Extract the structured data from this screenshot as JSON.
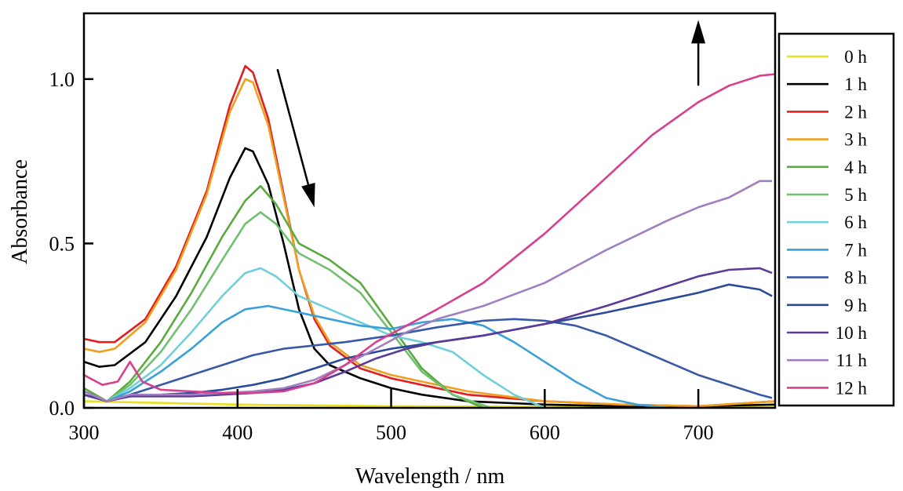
{
  "chart_data": {
    "type": "line",
    "title": "",
    "xlabel": "Wavelength / nm",
    "ylabel": "Absorbance",
    "xlim": [
      300,
      750
    ],
    "ylim": [
      0,
      1.2
    ],
    "x_ticks": [
      300,
      400,
      500,
      600,
      700
    ],
    "x_tick_labels": [
      "300",
      "400",
      "500",
      "600",
      "700"
    ],
    "y_ticks": [
      0,
      0.5,
      1.0
    ],
    "y_tick_labels": [
      "0.0",
      "0.5",
      "1.0"
    ],
    "grid": false,
    "legend_position": "right",
    "annotations": [
      {
        "type": "arrow",
        "direction": "down",
        "from": [
          426,
          1.03
        ],
        "to": [
          450,
          0.61
        ]
      },
      {
        "type": "arrow",
        "direction": "up",
        "from": [
          700,
          0.98
        ],
        "to": [
          700,
          1.18
        ]
      }
    ],
    "series": [
      {
        "name": "0 h",
        "color": "#e8e020",
        "points": [
          [
            300,
            0.02
          ],
          [
            350,
            0.015
          ],
          [
            400,
            0.01
          ],
          [
            500,
            0.005
          ],
          [
            600,
            0.003
          ],
          [
            700,
            0.003
          ],
          [
            750,
            0.002
          ]
        ]
      },
      {
        "name": "1 h",
        "color": "#000000",
        "points": [
          [
            300,
            0.14
          ],
          [
            310,
            0.125
          ],
          [
            320,
            0.13
          ],
          [
            340,
            0.2
          ],
          [
            360,
            0.34
          ],
          [
            380,
            0.52
          ],
          [
            395,
            0.7
          ],
          [
            405,
            0.79
          ],
          [
            410,
            0.78
          ],
          [
            420,
            0.68
          ],
          [
            430,
            0.5
          ],
          [
            440,
            0.3
          ],
          [
            450,
            0.18
          ],
          [
            460,
            0.13
          ],
          [
            480,
            0.09
          ],
          [
            500,
            0.06
          ],
          [
            520,
            0.04
          ],
          [
            550,
            0.02
          ],
          [
            600,
            0.01
          ],
          [
            650,
            0.005
          ],
          [
            700,
            0.005
          ],
          [
            750,
            0.01
          ]
        ]
      },
      {
        "name": "2 h",
        "color": "#e02020",
        "points": [
          [
            300,
            0.21
          ],
          [
            310,
            0.2
          ],
          [
            320,
            0.2
          ],
          [
            340,
            0.27
          ],
          [
            360,
            0.43
          ],
          [
            380,
            0.66
          ],
          [
            395,
            0.92
          ],
          [
            405,
            1.04
          ],
          [
            410,
            1.02
          ],
          [
            420,
            0.88
          ],
          [
            430,
            0.65
          ],
          [
            440,
            0.42
          ],
          [
            450,
            0.27
          ],
          [
            460,
            0.19
          ],
          [
            480,
            0.12
          ],
          [
            500,
            0.09
          ],
          [
            520,
            0.07
          ],
          [
            550,
            0.04
          ],
          [
            600,
            0.02
          ],
          [
            650,
            0.01
          ],
          [
            700,
            0.005
          ],
          [
            750,
            0.02
          ]
        ]
      },
      {
        "name": "3 h",
        "color": "#f0a020",
        "points": [
          [
            300,
            0.18
          ],
          [
            310,
            0.17
          ],
          [
            320,
            0.18
          ],
          [
            340,
            0.26
          ],
          [
            360,
            0.42
          ],
          [
            380,
            0.65
          ],
          [
            395,
            0.9
          ],
          [
            405,
            1.0
          ],
          [
            410,
            0.99
          ],
          [
            420,
            0.86
          ],
          [
            430,
            0.64
          ],
          [
            440,
            0.42
          ],
          [
            450,
            0.28
          ],
          [
            460,
            0.2
          ],
          [
            480,
            0.13
          ],
          [
            500,
            0.1
          ],
          [
            520,
            0.08
          ],
          [
            550,
            0.05
          ],
          [
            600,
            0.02
          ],
          [
            650,
            0.01
          ],
          [
            700,
            0.005
          ],
          [
            750,
            0.02
          ]
        ]
      },
      {
        "name": "4 h",
        "color": "#5aaa40",
        "points": [
          [
            300,
            0.06
          ],
          [
            315,
            0.02
          ],
          [
            330,
            0.08
          ],
          [
            350,
            0.2
          ],
          [
            370,
            0.35
          ],
          [
            390,
            0.52
          ],
          [
            405,
            0.63
          ],
          [
            415,
            0.675
          ],
          [
            425,
            0.62
          ],
          [
            440,
            0.5
          ],
          [
            460,
            0.45
          ],
          [
            480,
            0.38
          ],
          [
            500,
            0.25
          ],
          [
            520,
            0.12
          ],
          [
            540,
            0.04
          ],
          [
            560,
            0.0
          ]
        ]
      },
      {
        "name": "5 h",
        "color": "#70c070",
        "points": [
          [
            300,
            0.05
          ],
          [
            315,
            0.02
          ],
          [
            330,
            0.07
          ],
          [
            350,
            0.17
          ],
          [
            370,
            0.3
          ],
          [
            390,
            0.45
          ],
          [
            405,
            0.56
          ],
          [
            415,
            0.595
          ],
          [
            425,
            0.56
          ],
          [
            440,
            0.47
          ],
          [
            460,
            0.42
          ],
          [
            480,
            0.35
          ],
          [
            500,
            0.23
          ],
          [
            520,
            0.11
          ],
          [
            540,
            0.04
          ],
          [
            565,
            0.0
          ]
        ]
      },
      {
        "name": "6 h",
        "color": "#70d0d8",
        "points": [
          [
            300,
            0.05
          ],
          [
            315,
            0.02
          ],
          [
            330,
            0.06
          ],
          [
            350,
            0.13
          ],
          [
            370,
            0.23
          ],
          [
            390,
            0.34
          ],
          [
            405,
            0.41
          ],
          [
            415,
            0.425
          ],
          [
            425,
            0.4
          ],
          [
            440,
            0.34
          ],
          [
            460,
            0.3
          ],
          [
            480,
            0.26
          ],
          [
            500,
            0.22
          ],
          [
            520,
            0.2
          ],
          [
            540,
            0.17
          ],
          [
            560,
            0.1
          ],
          [
            580,
            0.04
          ],
          [
            600,
            0.0
          ]
        ]
      },
      {
        "name": "7 h",
        "color": "#3aa0d8",
        "points": [
          [
            300,
            0.05
          ],
          [
            315,
            0.02
          ],
          [
            330,
            0.05
          ],
          [
            350,
            0.11
          ],
          [
            370,
            0.18
          ],
          [
            390,
            0.26
          ],
          [
            405,
            0.3
          ],
          [
            420,
            0.31
          ],
          [
            440,
            0.29
          ],
          [
            460,
            0.27
          ],
          [
            480,
            0.25
          ],
          [
            500,
            0.24
          ],
          [
            520,
            0.26
          ],
          [
            540,
            0.27
          ],
          [
            560,
            0.25
          ],
          [
            580,
            0.2
          ],
          [
            600,
            0.14
          ],
          [
            620,
            0.08
          ],
          [
            640,
            0.03
          ],
          [
            660,
            0.01
          ],
          [
            680,
            0.0
          ]
        ]
      },
      {
        "name": "8 h",
        "color": "#3858a8",
        "points": [
          [
            300,
            0.04
          ],
          [
            315,
            0.02
          ],
          [
            330,
            0.04
          ],
          [
            350,
            0.07
          ],
          [
            370,
            0.1
          ],
          [
            390,
            0.13
          ],
          [
            410,
            0.16
          ],
          [
            430,
            0.18
          ],
          [
            450,
            0.19
          ],
          [
            470,
            0.2
          ],
          [
            500,
            0.22
          ],
          [
            530,
            0.245
          ],
          [
            560,
            0.265
          ],
          [
            580,
            0.27
          ],
          [
            600,
            0.265
          ],
          [
            620,
            0.25
          ],
          [
            640,
            0.22
          ],
          [
            660,
            0.18
          ],
          [
            680,
            0.14
          ],
          [
            700,
            0.1
          ],
          [
            720,
            0.07
          ],
          [
            740,
            0.04
          ],
          [
            748,
            0.03
          ]
        ]
      },
      {
        "name": "9 h",
        "color": "#2a4a9a",
        "points": [
          [
            300,
            0.04
          ],
          [
            315,
            0.02
          ],
          [
            330,
            0.035
          ],
          [
            350,
            0.04
          ],
          [
            370,
            0.045
          ],
          [
            390,
            0.055
          ],
          [
            410,
            0.07
          ],
          [
            430,
            0.09
          ],
          [
            450,
            0.12
          ],
          [
            470,
            0.15
          ],
          [
            500,
            0.18
          ],
          [
            530,
            0.2
          ],
          [
            560,
            0.22
          ],
          [
            600,
            0.255
          ],
          [
            640,
            0.29
          ],
          [
            680,
            0.33
          ],
          [
            700,
            0.35
          ],
          [
            720,
            0.375
          ],
          [
            740,
            0.36
          ],
          [
            748,
            0.34
          ]
        ]
      },
      {
        "name": "10 h",
        "color": "#5a3c98",
        "points": [
          [
            300,
            0.04
          ],
          [
            315,
            0.02
          ],
          [
            330,
            0.035
          ],
          [
            350,
            0.035
          ],
          [
            370,
            0.035
          ],
          [
            390,
            0.04
          ],
          [
            410,
            0.045
          ],
          [
            430,
            0.055
          ],
          [
            450,
            0.075
          ],
          [
            470,
            0.11
          ],
          [
            490,
            0.15
          ],
          [
            510,
            0.18
          ],
          [
            530,
            0.2
          ],
          [
            560,
            0.22
          ],
          [
            600,
            0.255
          ],
          [
            640,
            0.31
          ],
          [
            680,
            0.37
          ],
          [
            700,
            0.4
          ],
          [
            720,
            0.42
          ],
          [
            740,
            0.425
          ],
          [
            748,
            0.41
          ]
        ]
      },
      {
        "name": "11 h",
        "color": "#a080c0",
        "points": [
          [
            300,
            0.05
          ],
          [
            315,
            0.02
          ],
          [
            330,
            0.04
          ],
          [
            350,
            0.04
          ],
          [
            370,
            0.04
          ],
          [
            390,
            0.045
          ],
          [
            410,
            0.05
          ],
          [
            430,
            0.06
          ],
          [
            450,
            0.085
          ],
          [
            470,
            0.13
          ],
          [
            490,
            0.18
          ],
          [
            510,
            0.23
          ],
          [
            530,
            0.27
          ],
          [
            560,
            0.31
          ],
          [
            600,
            0.38
          ],
          [
            640,
            0.48
          ],
          [
            680,
            0.57
          ],
          [
            700,
            0.61
          ],
          [
            720,
            0.64
          ],
          [
            740,
            0.69
          ],
          [
            748,
            0.69
          ]
        ]
      },
      {
        "name": "12 h",
        "color": "#d8408e",
        "points": [
          [
            300,
            0.1
          ],
          [
            312,
            0.07
          ],
          [
            322,
            0.08
          ],
          [
            330,
            0.14
          ],
          [
            338,
            0.08
          ],
          [
            350,
            0.055
          ],
          [
            370,
            0.05
          ],
          [
            390,
            0.045
          ],
          [
            410,
            0.045
          ],
          [
            430,
            0.05
          ],
          [
            450,
            0.075
          ],
          [
            470,
            0.13
          ],
          [
            490,
            0.2
          ],
          [
            510,
            0.25
          ],
          [
            530,
            0.3
          ],
          [
            560,
            0.38
          ],
          [
            600,
            0.53
          ],
          [
            640,
            0.7
          ],
          [
            670,
            0.83
          ],
          [
            700,
            0.93
          ],
          [
            720,
            0.98
          ],
          [
            740,
            1.01
          ],
          [
            750,
            1.015
          ]
        ]
      }
    ]
  }
}
